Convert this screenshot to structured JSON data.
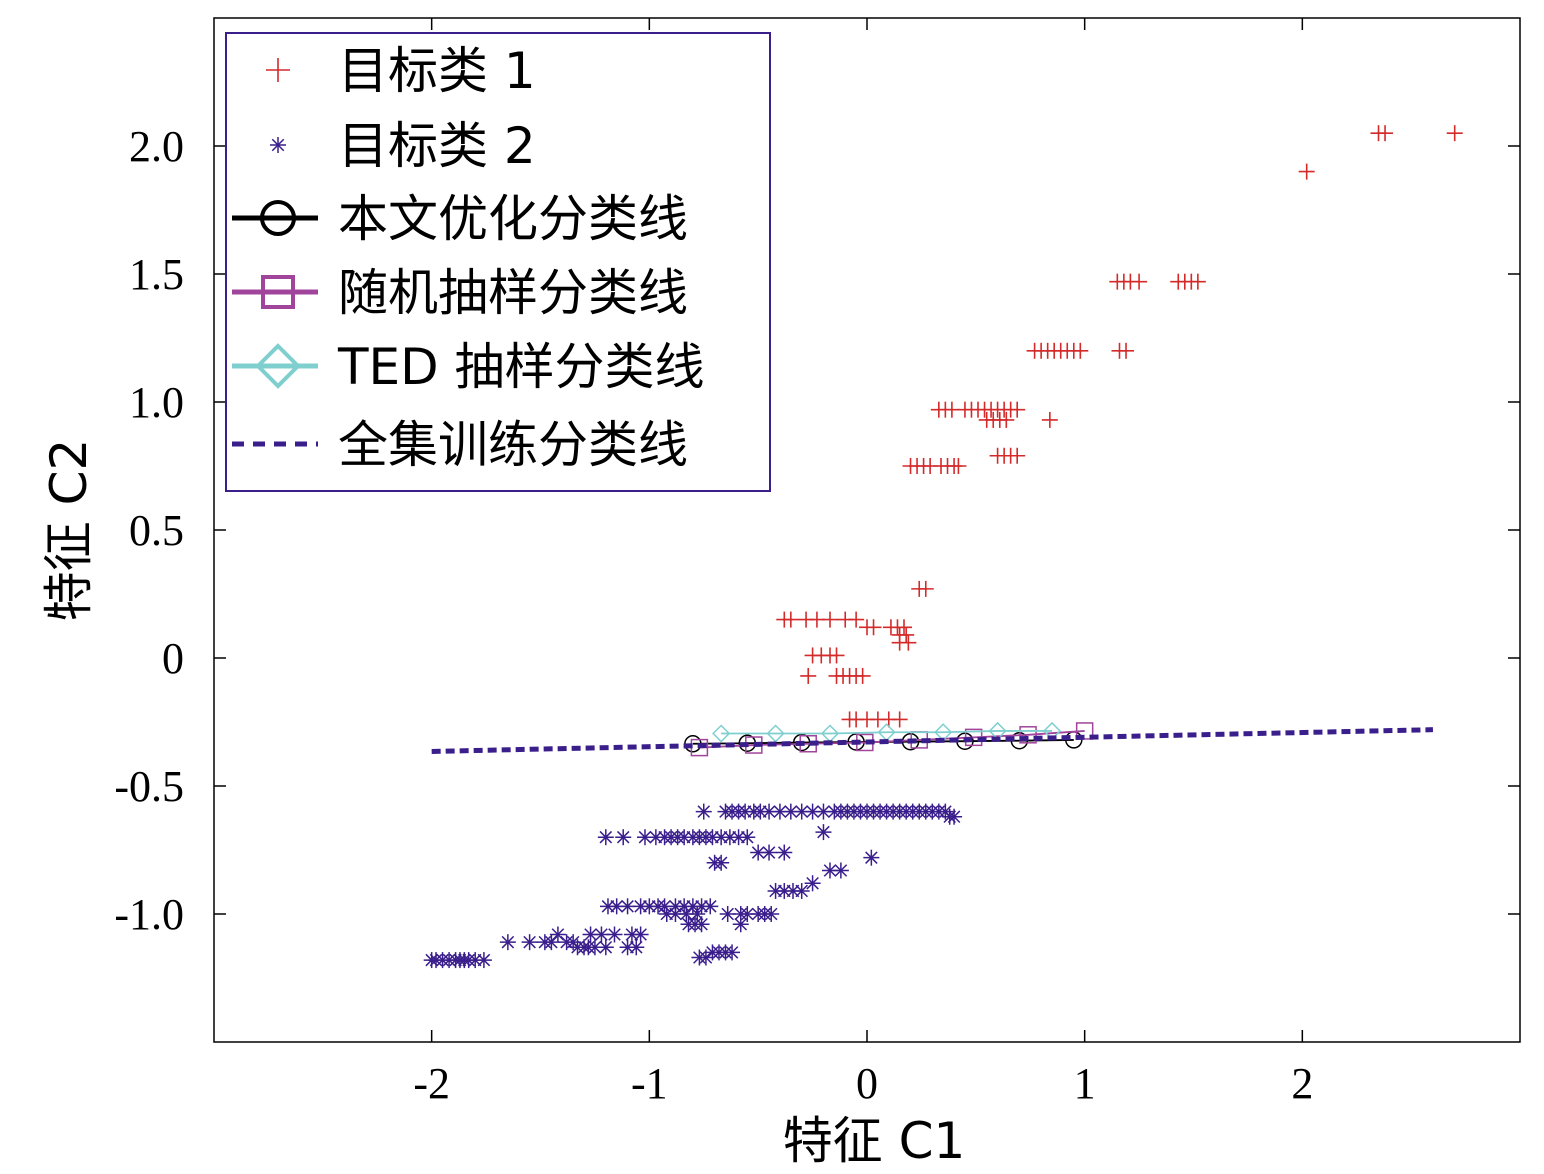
{
  "chart_data": {
    "type": "scatter",
    "xlabel": "特征 C1",
    "ylabel": "特征 C2",
    "xlim": [
      -3,
      3
    ],
    "ylim": [
      -1.5,
      2.5
    ],
    "xticks": [
      {
        "value": -2,
        "label": "-2"
      },
      {
        "value": -1,
        "label": "-1"
      },
      {
        "value": 0,
        "label": "0"
      },
      {
        "value": 1,
        "label": "1"
      },
      {
        "value": 2,
        "label": "2"
      }
    ],
    "yticks": [
      {
        "value": -1.0,
        "label": "-1.0"
      },
      {
        "value": -0.5,
        "label": "-0.5"
      },
      {
        "value": 0,
        "label": "0"
      },
      {
        "value": 0.5,
        "label": "0.5"
      },
      {
        "value": 1.0,
        "label": "1.0"
      },
      {
        "value": 1.5,
        "label": "1.5"
      },
      {
        "value": 2.0,
        "label": "2.0"
      }
    ],
    "grid": false,
    "legend_position": "top-left",
    "series": [
      {
        "name": "目标类 1",
        "kind": "points",
        "marker": "plus",
        "color": "#d42a2a",
        "points": [
          [
            2.35,
            2.05
          ],
          [
            2.38,
            2.05
          ],
          [
            2.7,
            2.05
          ],
          [
            2.02,
            1.9
          ],
          [
            1.15,
            1.47
          ],
          [
            1.18,
            1.47
          ],
          [
            1.21,
            1.47
          ],
          [
            1.25,
            1.47
          ],
          [
            1.43,
            1.47
          ],
          [
            1.46,
            1.47
          ],
          [
            1.49,
            1.47
          ],
          [
            1.52,
            1.47
          ],
          [
            0.77,
            1.2
          ],
          [
            0.8,
            1.2
          ],
          [
            0.83,
            1.2
          ],
          [
            0.86,
            1.2
          ],
          [
            0.89,
            1.2
          ],
          [
            0.92,
            1.2
          ],
          [
            0.95,
            1.2
          ],
          [
            0.98,
            1.2
          ],
          [
            1.16,
            1.2
          ],
          [
            1.19,
            1.2
          ],
          [
            0.33,
            0.97
          ],
          [
            0.36,
            0.97
          ],
          [
            0.39,
            0.97
          ],
          [
            0.45,
            0.97
          ],
          [
            0.48,
            0.97
          ],
          [
            0.51,
            0.97
          ],
          [
            0.54,
            0.97
          ],
          [
            0.57,
            0.97
          ],
          [
            0.6,
            0.97
          ],
          [
            0.63,
            0.97
          ],
          [
            0.66,
            0.97
          ],
          [
            0.69,
            0.97
          ],
          [
            0.55,
            0.93
          ],
          [
            0.58,
            0.93
          ],
          [
            0.61,
            0.93
          ],
          [
            0.64,
            0.93
          ],
          [
            0.84,
            0.93
          ],
          [
            0.2,
            0.75
          ],
          [
            0.23,
            0.75
          ],
          [
            0.26,
            0.75
          ],
          [
            0.29,
            0.75
          ],
          [
            0.34,
            0.75
          ],
          [
            0.37,
            0.75
          ],
          [
            0.4,
            0.75
          ],
          [
            0.42,
            0.75
          ],
          [
            0.6,
            0.79
          ],
          [
            0.63,
            0.79
          ],
          [
            0.66,
            0.79
          ],
          [
            0.69,
            0.79
          ],
          [
            0.24,
            0.27
          ],
          [
            0.27,
            0.27
          ],
          [
            -0.38,
            0.15
          ],
          [
            -0.35,
            0.15
          ],
          [
            -0.28,
            0.15
          ],
          [
            -0.23,
            0.15
          ],
          [
            -0.17,
            0.15
          ],
          [
            -0.1,
            0.15
          ],
          [
            -0.05,
            0.15
          ],
          [
            0.0,
            0.12
          ],
          [
            0.03,
            0.12
          ],
          [
            0.11,
            0.12
          ],
          [
            0.14,
            0.12
          ],
          [
            0.17,
            0.12
          ],
          [
            0.15,
            0.09
          ],
          [
            0.18,
            0.09
          ],
          [
            0.15,
            0.06
          ],
          [
            0.19,
            0.06
          ],
          [
            -0.25,
            0.01
          ],
          [
            -0.21,
            0.01
          ],
          [
            -0.17,
            0.01
          ],
          [
            -0.14,
            0.01
          ],
          [
            -0.27,
            -0.07
          ],
          [
            -0.14,
            -0.07
          ],
          [
            -0.11,
            -0.07
          ],
          [
            -0.08,
            -0.07
          ],
          [
            -0.05,
            -0.07
          ],
          [
            -0.02,
            -0.07
          ],
          [
            -0.08,
            -0.24
          ],
          [
            -0.05,
            -0.24
          ],
          [
            0.0,
            -0.24
          ],
          [
            0.05,
            -0.24
          ],
          [
            0.1,
            -0.24
          ],
          [
            0.15,
            -0.24
          ]
        ]
      },
      {
        "name": "目标类 2",
        "kind": "points",
        "marker": "star",
        "color": "#3a1e8c",
        "points": [
          [
            -2.0,
            -1.18
          ],
          [
            -1.98,
            -1.18
          ],
          [
            -1.95,
            -1.18
          ],
          [
            -1.92,
            -1.18
          ],
          [
            -1.89,
            -1.18
          ],
          [
            -1.87,
            -1.18
          ],
          [
            -1.85,
            -1.18
          ],
          [
            -1.83,
            -1.18
          ],
          [
            -1.8,
            -1.18
          ],
          [
            -1.76,
            -1.18
          ],
          [
            -1.65,
            -1.11
          ],
          [
            -1.55,
            -1.11
          ],
          [
            -1.48,
            -1.11
          ],
          [
            -1.45,
            -1.11
          ],
          [
            -1.38,
            -1.11
          ],
          [
            -1.35,
            -1.11
          ],
          [
            -1.33,
            -1.13
          ],
          [
            -1.3,
            -1.13
          ],
          [
            -1.28,
            -1.13
          ],
          [
            -1.25,
            -1.13
          ],
          [
            -1.2,
            -1.13
          ],
          [
            -1.1,
            -1.13
          ],
          [
            -1.06,
            -1.13
          ],
          [
            -1.42,
            -1.08
          ],
          [
            -1.27,
            -1.08
          ],
          [
            -1.22,
            -1.08
          ],
          [
            -1.16,
            -1.08
          ],
          [
            -1.08,
            -1.08
          ],
          [
            -1.04,
            -1.08
          ],
          [
            -1.19,
            -0.97
          ],
          [
            -1.15,
            -0.97
          ],
          [
            -1.1,
            -0.97
          ],
          [
            -1.04,
            -0.97
          ],
          [
            -1.0,
            -0.97
          ],
          [
            -0.96,
            -0.97
          ],
          [
            -0.93,
            -0.97
          ],
          [
            -0.88,
            -0.97
          ],
          [
            -0.84,
            -0.97
          ],
          [
            -0.8,
            -0.97
          ],
          [
            -0.76,
            -0.97
          ],
          [
            -0.72,
            -0.97
          ],
          [
            -0.92,
            -1.0
          ],
          [
            -0.88,
            -1.0
          ],
          [
            -0.83,
            -1.0
          ],
          [
            -0.78,
            -1.0
          ],
          [
            -0.64,
            -1.0
          ],
          [
            -0.58,
            -1.0
          ],
          [
            -0.55,
            -1.0
          ],
          [
            -0.5,
            -1.0
          ],
          [
            -0.47,
            -1.0
          ],
          [
            -0.44,
            -1.0
          ],
          [
            -0.82,
            -1.04
          ],
          [
            -0.79,
            -1.04
          ],
          [
            -0.76,
            -1.04
          ],
          [
            -0.58,
            -1.04
          ],
          [
            -0.77,
            -1.17
          ],
          [
            -0.74,
            -1.17
          ],
          [
            -0.71,
            -1.15
          ],
          [
            -0.68,
            -1.15
          ],
          [
            -0.65,
            -1.15
          ],
          [
            -0.62,
            -1.15
          ],
          [
            -1.2,
            -0.7
          ],
          [
            -1.12,
            -0.7
          ],
          [
            -1.02,
            -0.7
          ],
          [
            -0.97,
            -0.7
          ],
          [
            -0.93,
            -0.7
          ],
          [
            -0.9,
            -0.7
          ],
          [
            -0.87,
            -0.7
          ],
          [
            -0.84,
            -0.7
          ],
          [
            -0.8,
            -0.7
          ],
          [
            -0.77,
            -0.7
          ],
          [
            -0.74,
            -0.7
          ],
          [
            -0.71,
            -0.7
          ],
          [
            -0.67,
            -0.7
          ],
          [
            -0.63,
            -0.7
          ],
          [
            -0.59,
            -0.7
          ],
          [
            -0.55,
            -0.7
          ],
          [
            -0.7,
            -0.8
          ],
          [
            -0.67,
            -0.8
          ],
          [
            -0.5,
            -0.76
          ],
          [
            -0.45,
            -0.76
          ],
          [
            -0.38,
            -0.76
          ],
          [
            -0.42,
            -0.91
          ],
          [
            -0.38,
            -0.91
          ],
          [
            -0.34,
            -0.91
          ],
          [
            -0.3,
            -0.91
          ],
          [
            -0.25,
            -0.88
          ],
          [
            -0.17,
            -0.83
          ],
          [
            -0.12,
            -0.83
          ],
          [
            0.02,
            -0.78
          ],
          [
            -0.2,
            -0.68
          ],
          [
            -0.75,
            -0.6
          ],
          [
            -0.65,
            -0.6
          ],
          [
            -0.62,
            -0.6
          ],
          [
            -0.59,
            -0.6
          ],
          [
            -0.56,
            -0.6
          ],
          [
            -0.52,
            -0.6
          ],
          [
            -0.49,
            -0.6
          ],
          [
            -0.45,
            -0.6
          ],
          [
            -0.4,
            -0.6
          ],
          [
            -0.35,
            -0.6
          ],
          [
            -0.3,
            -0.6
          ],
          [
            -0.25,
            -0.6
          ],
          [
            -0.2,
            -0.6
          ],
          [
            -0.15,
            -0.6
          ],
          [
            -0.12,
            -0.6
          ],
          [
            -0.09,
            -0.6
          ],
          [
            -0.06,
            -0.6
          ],
          [
            -0.03,
            -0.6
          ],
          [
            0.0,
            -0.6
          ],
          [
            0.03,
            -0.6
          ],
          [
            0.06,
            -0.6
          ],
          [
            0.09,
            -0.6
          ],
          [
            0.12,
            -0.6
          ],
          [
            0.15,
            -0.6
          ],
          [
            0.18,
            -0.6
          ],
          [
            0.21,
            -0.6
          ],
          [
            0.24,
            -0.6
          ],
          [
            0.27,
            -0.6
          ],
          [
            0.3,
            -0.6
          ],
          [
            0.33,
            -0.6
          ],
          [
            0.36,
            -0.6
          ],
          [
            0.38,
            -0.62
          ],
          [
            0.4,
            -0.62
          ]
        ]
      },
      {
        "name": "本文优化分类线",
        "kind": "line",
        "marker": "circle",
        "color": "#000000",
        "points": [
          [
            -0.8,
            -0.335
          ],
          [
            -0.55,
            -0.333
          ],
          [
            -0.3,
            -0.33
          ],
          [
            -0.05,
            -0.328
          ],
          [
            0.2,
            -0.327
          ],
          [
            0.45,
            -0.325
          ],
          [
            0.7,
            -0.323
          ],
          [
            0.95,
            -0.32
          ]
        ]
      },
      {
        "name": "随机抽样分类线",
        "kind": "line",
        "marker": "square",
        "color": "#a0449c",
        "points": [
          [
            -0.77,
            -0.35
          ],
          [
            -0.52,
            -0.34
          ],
          [
            -0.27,
            -0.335
          ],
          [
            -0.01,
            -0.33
          ],
          [
            0.24,
            -0.32
          ],
          [
            0.49,
            -0.31
          ],
          [
            0.74,
            -0.3
          ],
          [
            1.0,
            -0.285
          ]
        ]
      },
      {
        "name": "TED 抽样分类线",
        "kind": "line",
        "marker": "diamond",
        "color": "#7fcfcf",
        "points": [
          [
            -0.67,
            -0.295
          ],
          [
            -0.42,
            -0.295
          ],
          [
            -0.17,
            -0.295
          ],
          [
            0.09,
            -0.29
          ],
          [
            0.35,
            -0.29
          ],
          [
            0.6,
            -0.285
          ],
          [
            0.85,
            -0.285
          ]
        ]
      },
      {
        "name": "全集训练分类线",
        "kind": "line",
        "marker": "none",
        "dash": true,
        "color": "#3a1e8c",
        "points": [
          [
            -2.0,
            -0.365
          ],
          [
            2.6,
            -0.28
          ]
        ]
      }
    ]
  }
}
